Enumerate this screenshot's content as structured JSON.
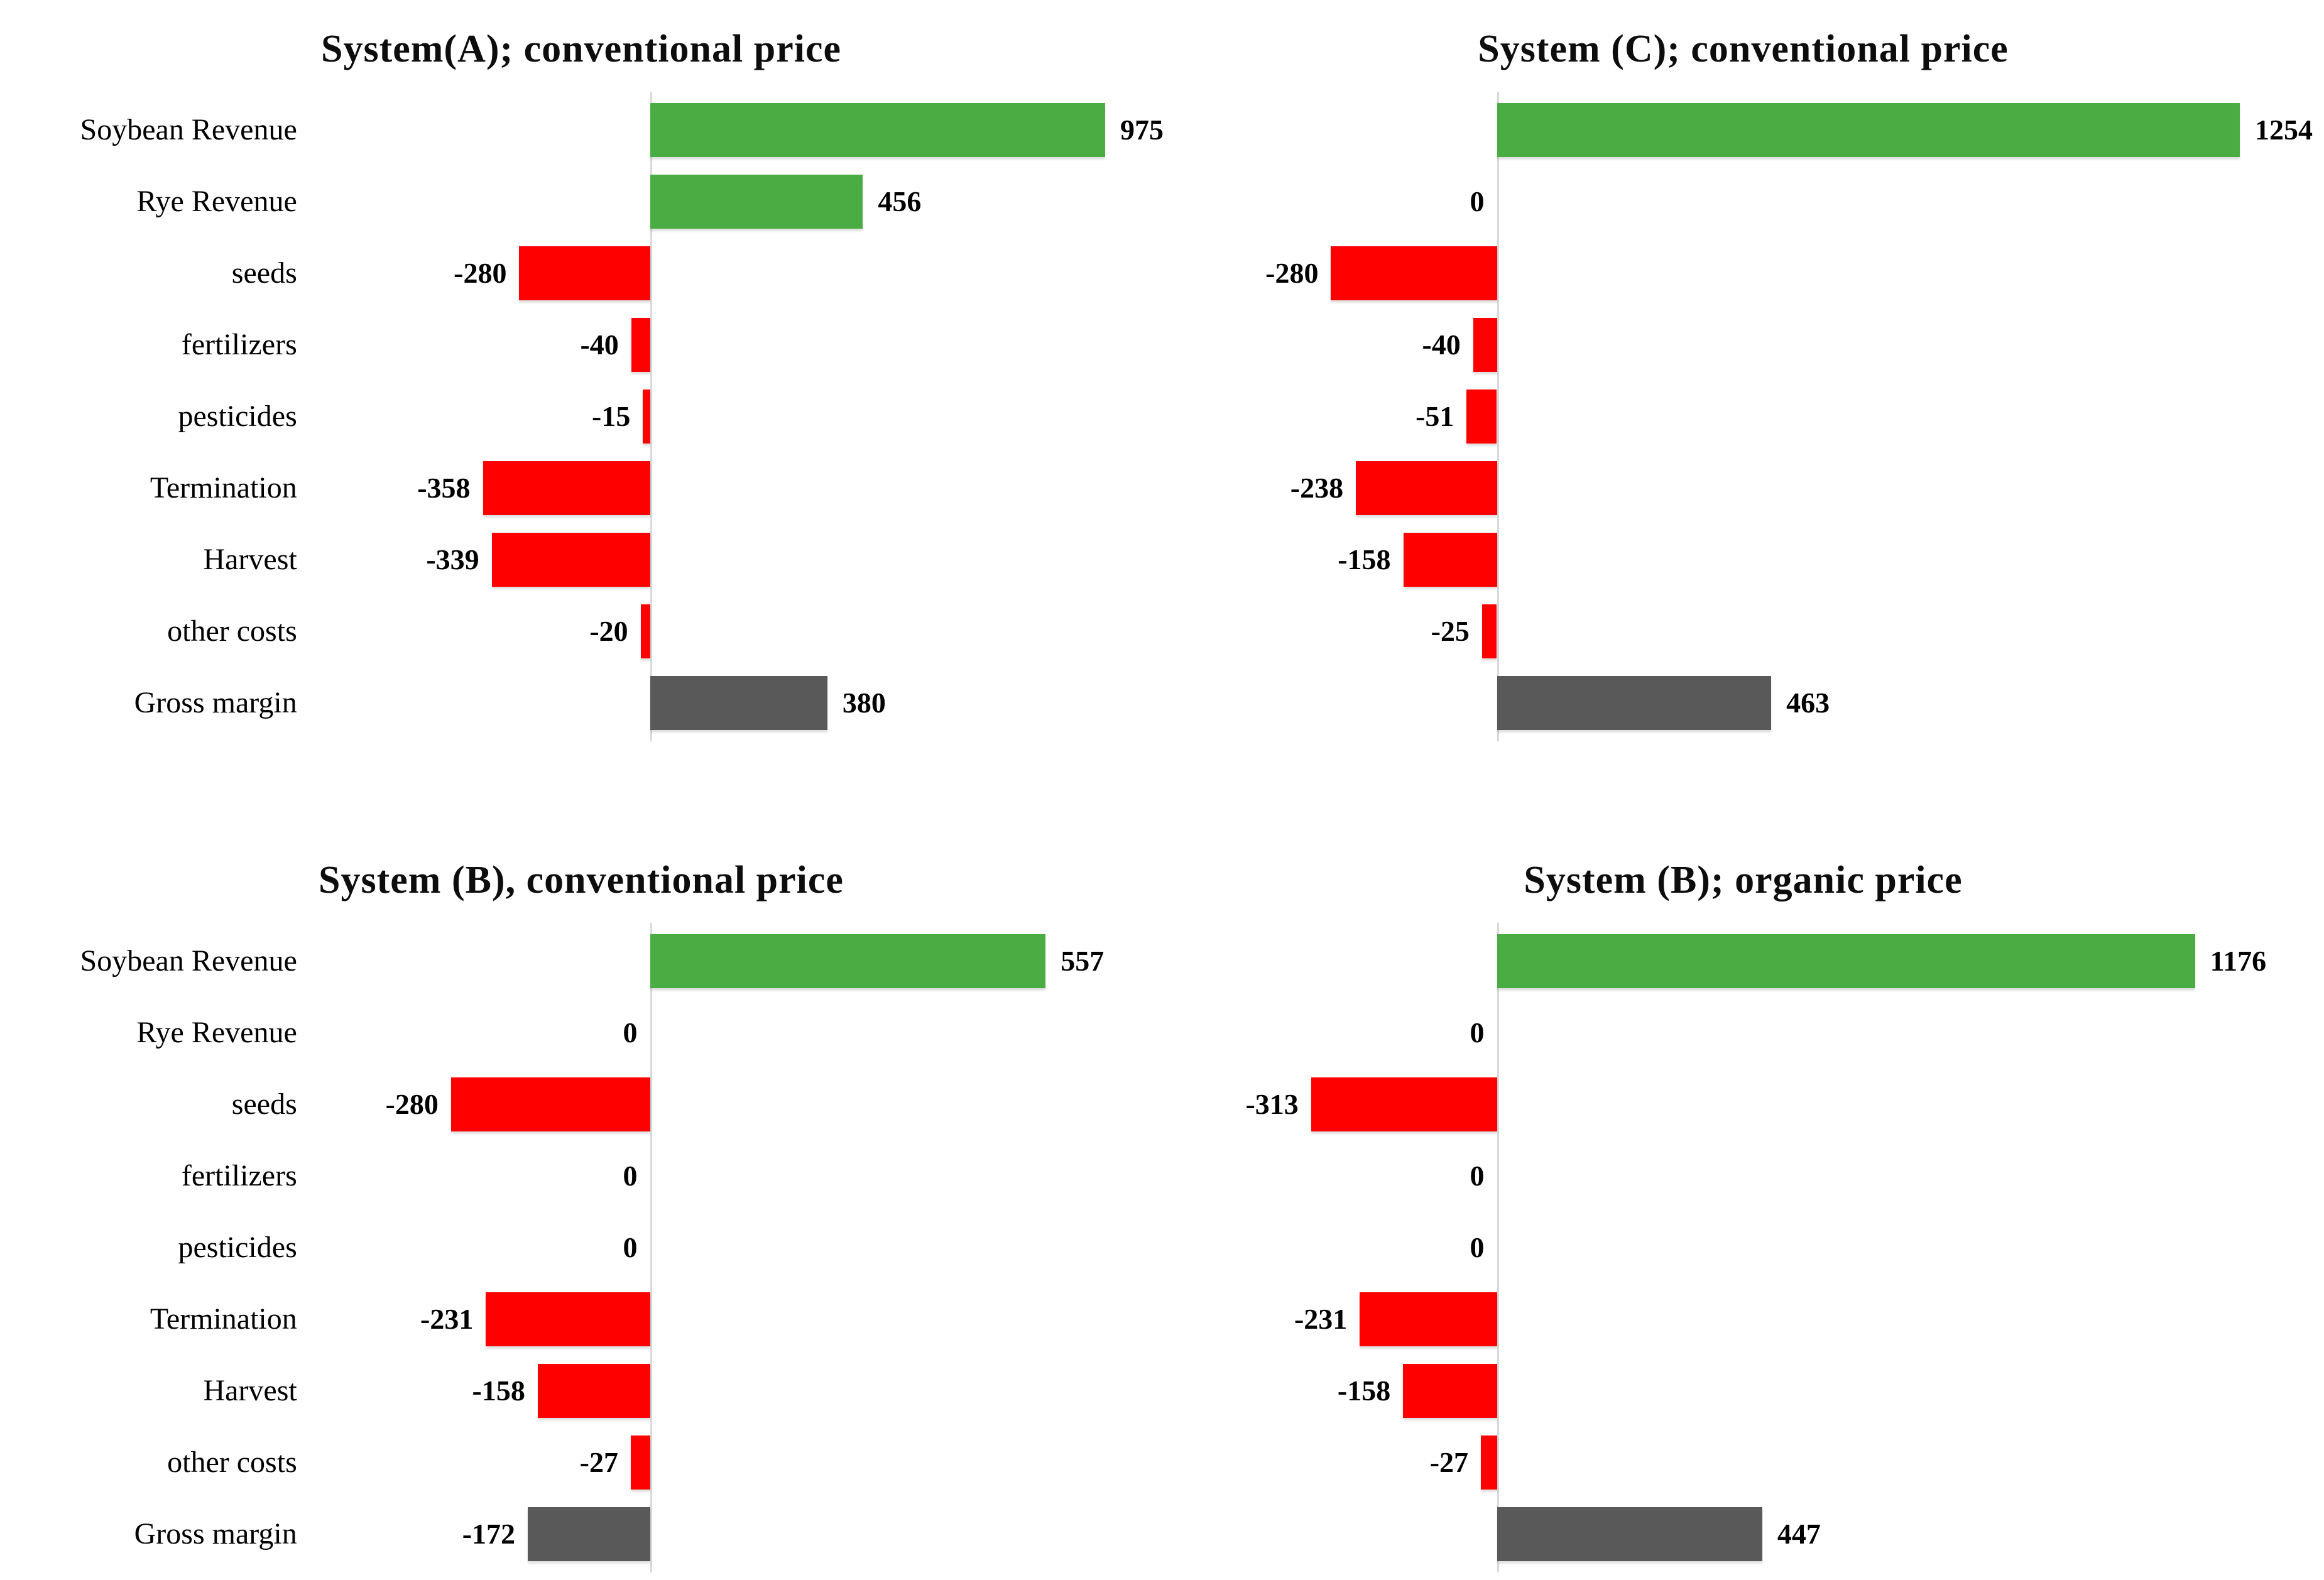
{
  "colors": {
    "revenue": "#4aad43",
    "cost": "#ff0000",
    "margin": "#595959",
    "axis_line": "#d9d9d9",
    "text": "#000000"
  },
  "chart_data": [
    {
      "type": "bar",
      "orientation": "horizontal",
      "title": "System(A); conventional price",
      "categories": [
        "Soybean Revenue",
        "Rye Revenue",
        "seeds",
        "fertilizers",
        "pesticides",
        "Termination",
        "Harvest",
        "other costs",
        "Gross margin"
      ],
      "values": [
        975,
        456,
        -280,
        -40,
        -15,
        -358,
        -339,
        -20,
        380
      ],
      "bar_roles": [
        "revenue",
        "revenue",
        "cost",
        "cost",
        "cost",
        "cost",
        "cost",
        "cost",
        "margin"
      ],
      "show_category_labels": true,
      "label_col_pct": 27.5,
      "zero_pct": 39.2,
      "unit_pct": 0.0554,
      "grid": "off",
      "legend": "none"
    },
    {
      "type": "bar",
      "orientation": "horizontal",
      "title": "System (C); conventional price",
      "categories": [
        "Soybean Revenue",
        "Rye Revenue",
        "seeds",
        "fertilizers",
        "pesticides",
        "Termination",
        "Harvest",
        "other costs",
        "Gross margin"
      ],
      "values": [
        1254,
        0,
        -280,
        -40,
        -51,
        -238,
        -158,
        -25,
        463
      ],
      "bar_roles": [
        "revenue",
        "revenue",
        "cost",
        "cost",
        "cost",
        "cost",
        "cost",
        "cost",
        "margin"
      ],
      "show_category_labels": false,
      "label_col_pct": 0,
      "zero_pct": 28.8,
      "unit_pct": 0.051,
      "grid": "off",
      "legend": "none"
    },
    {
      "type": "bar",
      "orientation": "horizontal",
      "title": "System (B), conventional price",
      "categories": [
        "Soybean Revenue",
        "Rye Revenue",
        "seeds",
        "fertilizers",
        "pesticides",
        "Termination",
        "Harvest",
        "other costs",
        "Gross margin"
      ],
      "values": [
        557,
        0,
        -280,
        0,
        0,
        -231,
        -158,
        -27,
        -172
      ],
      "bar_roles": [
        "revenue",
        "revenue",
        "cost",
        "cost",
        "cost",
        "cost",
        "cost",
        "cost",
        "margin"
      ],
      "show_category_labels": true,
      "label_col_pct": 27.5,
      "zero_pct": 39.2,
      "unit_pct": 0.0843,
      "grid": "off",
      "legend": "none"
    },
    {
      "type": "bar",
      "orientation": "horizontal",
      "title": "System (B); organic price",
      "categories": [
        "Soybean Revenue",
        "Rye Revenue",
        "seeds",
        "fertilizers",
        "pesticides",
        "Termination",
        "Harvest",
        "other costs",
        "Gross margin"
      ],
      "values": [
        1176,
        0,
        -313,
        0,
        0,
        -231,
        -158,
        -27,
        447
      ],
      "bar_roles": [
        "revenue",
        "revenue",
        "cost",
        "cost",
        "cost",
        "cost",
        "cost",
        "cost",
        "margin"
      ],
      "show_category_labels": false,
      "label_col_pct": 0,
      "zero_pct": 28.8,
      "unit_pct": 0.0511,
      "grid": "off",
      "legend": "none"
    }
  ]
}
